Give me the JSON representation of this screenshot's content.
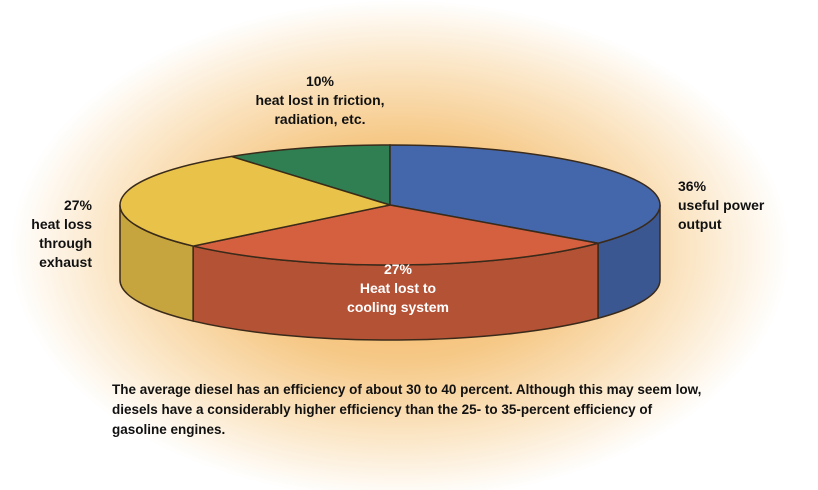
{
  "chart_data": {
    "type": "pie",
    "categories": [
      "heat lost in friction, radiation, etc.",
      "useful power output",
      "Heat lost to cooling system",
      "heat loss through exhaust"
    ],
    "values": [
      10,
      36,
      27,
      27
    ],
    "value_labels": [
      "10%",
      "36%",
      "27%",
      "27%"
    ],
    "colors": [
      "#2f7f52",
      "#4466aa",
      "#d4603f",
      "#e9c24a"
    ],
    "caption": "The average diesel has an efficiency of about 30 to 40 percent. Although this may seem low, diesels have a considerably higher efficiency than the 25- to 35-percent efficiency of gasoline engines."
  }
}
